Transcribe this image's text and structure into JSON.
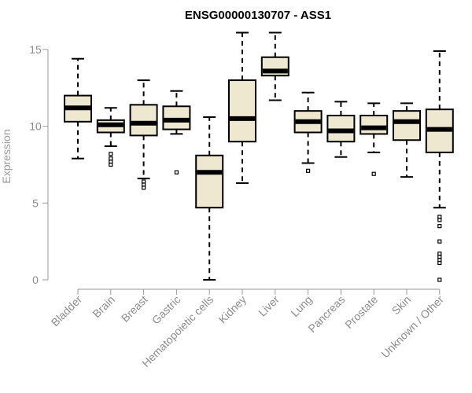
{
  "chart_data": {
    "type": "box",
    "title": "ENSG00000130707 - ASS1",
    "xlabel": "",
    "ylabel": "Expression",
    "ylim": [
      0,
      16
    ],
    "yticks": [
      0,
      5,
      10,
      15
    ],
    "grid": false,
    "box_fill": "#EFE8D0",
    "categories": [
      "Bladder",
      "Brain",
      "Breast",
      "Gastric",
      "Hematopoietic cells",
      "Kidney",
      "Liver",
      "Lung",
      "Pancreas",
      "Prostate",
      "Skin",
      "Unknown / Other"
    ],
    "boxes": [
      {
        "category": "Bladder",
        "whisker_low": 7.9,
        "q1": 10.3,
        "median": 11.2,
        "q3": 12.0,
        "whisker_high": 14.4,
        "outliers": []
      },
      {
        "category": "Brain",
        "whisker_low": 8.7,
        "q1": 9.6,
        "median": 10.1,
        "q3": 10.4,
        "whisker_high": 11.2,
        "outliers": [
          7.5,
          7.7,
          7.9,
          8.2
        ]
      },
      {
        "category": "Breast",
        "whisker_low": 6.6,
        "q1": 9.4,
        "median": 10.2,
        "q3": 11.4,
        "whisker_high": 13.0,
        "outliers": [
          6.0,
          6.2,
          6.4
        ]
      },
      {
        "category": "Gastric",
        "whisker_low": 9.5,
        "q1": 9.8,
        "median": 10.4,
        "q3": 11.3,
        "whisker_high": 12.3,
        "outliers": [
          7.0
        ]
      },
      {
        "category": "Hematopoietic cells",
        "whisker_low": 0.0,
        "q1": 4.7,
        "median": 7.0,
        "q3": 8.1,
        "whisker_high": 10.6,
        "outliers": []
      },
      {
        "category": "Kidney",
        "whisker_low": 6.3,
        "q1": 9.0,
        "median": 10.5,
        "q3": 13.0,
        "whisker_high": 16.1,
        "outliers": []
      },
      {
        "category": "Liver",
        "whisker_low": 11.7,
        "q1": 13.3,
        "median": 13.6,
        "q3": 14.5,
        "whisker_high": 16.1,
        "outliers": []
      },
      {
        "category": "Lung",
        "whisker_low": 7.6,
        "q1": 9.6,
        "median": 10.3,
        "q3": 11.0,
        "whisker_high": 12.2,
        "outliers": [
          7.1
        ]
      },
      {
        "category": "Pancreas",
        "whisker_low": 8.0,
        "q1": 9.0,
        "median": 9.7,
        "q3": 10.7,
        "whisker_high": 11.6,
        "outliers": []
      },
      {
        "category": "Prostate",
        "whisker_low": 8.3,
        "q1": 9.5,
        "median": 9.9,
        "q3": 10.7,
        "whisker_high": 11.5,
        "outliers": [
          6.9
        ]
      },
      {
        "category": "Skin",
        "whisker_low": 6.7,
        "q1": 9.1,
        "median": 10.3,
        "q3": 11.0,
        "whisker_high": 11.5,
        "outliers": []
      },
      {
        "category": "Unknown / Other",
        "whisker_low": 4.7,
        "q1": 8.3,
        "median": 9.8,
        "q3": 11.1,
        "whisker_high": 14.9,
        "outliers": [
          0.0,
          1.1,
          1.3,
          1.5,
          1.7,
          2.5,
          3.5,
          3.9,
          4.1
        ]
      }
    ]
  }
}
